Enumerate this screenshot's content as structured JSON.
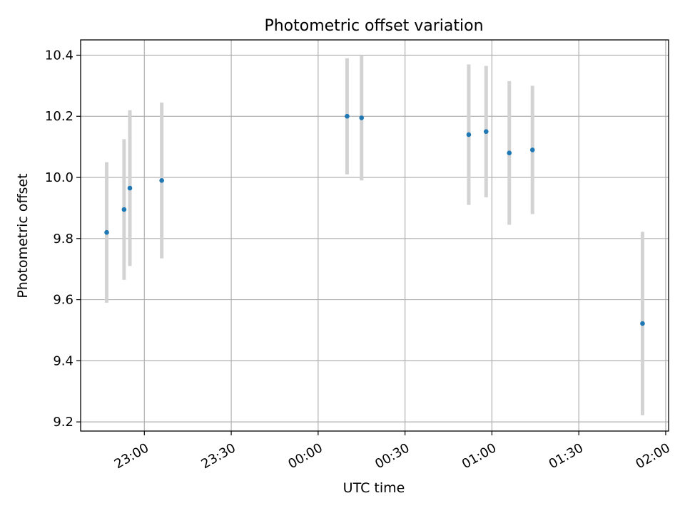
{
  "chart_data": {
    "type": "scatter",
    "title": "Photometric offset variation",
    "xlabel": "UTC time",
    "ylabel": "Photometric offset",
    "xlim": [
      "22:38",
      "02:01"
    ],
    "ylim": [
      9.17,
      10.45
    ],
    "x_ticks": [
      "23:00",
      "23:30",
      "00:00",
      "00:30",
      "01:00",
      "01:30",
      "02:00"
    ],
    "y_ticks": [
      "9.2",
      "9.4",
      "9.6",
      "9.8",
      "10.0",
      "10.2",
      "10.4"
    ],
    "grid": true,
    "colors": {
      "point": "#1f77b4",
      "errorbar": "#d3d3d3",
      "grid": "#b0b0b0"
    },
    "points": [
      {
        "x": "22:47",
        "y": 9.82,
        "err": 0.23
      },
      {
        "x": "22:53",
        "y": 9.895,
        "err": 0.23
      },
      {
        "x": "22:55",
        "y": 9.965,
        "err": 0.255
      },
      {
        "x": "23:06",
        "y": 9.99,
        "err": 0.255
      },
      {
        "x": "00:10",
        "y": 10.2,
        "err": 0.19
      },
      {
        "x": "00:15",
        "y": 10.195,
        "err": 0.205
      },
      {
        "x": "00:52",
        "y": 10.14,
        "err": 0.23
      },
      {
        "x": "00:58",
        "y": 10.15,
        "err": 0.215
      },
      {
        "x": "01:06",
        "y": 10.08,
        "err": 0.235
      },
      {
        "x": "01:14",
        "y": 10.09,
        "err": 0.21
      },
      {
        "x": "01:52",
        "y": 9.522,
        "err": 0.3
      }
    ]
  }
}
